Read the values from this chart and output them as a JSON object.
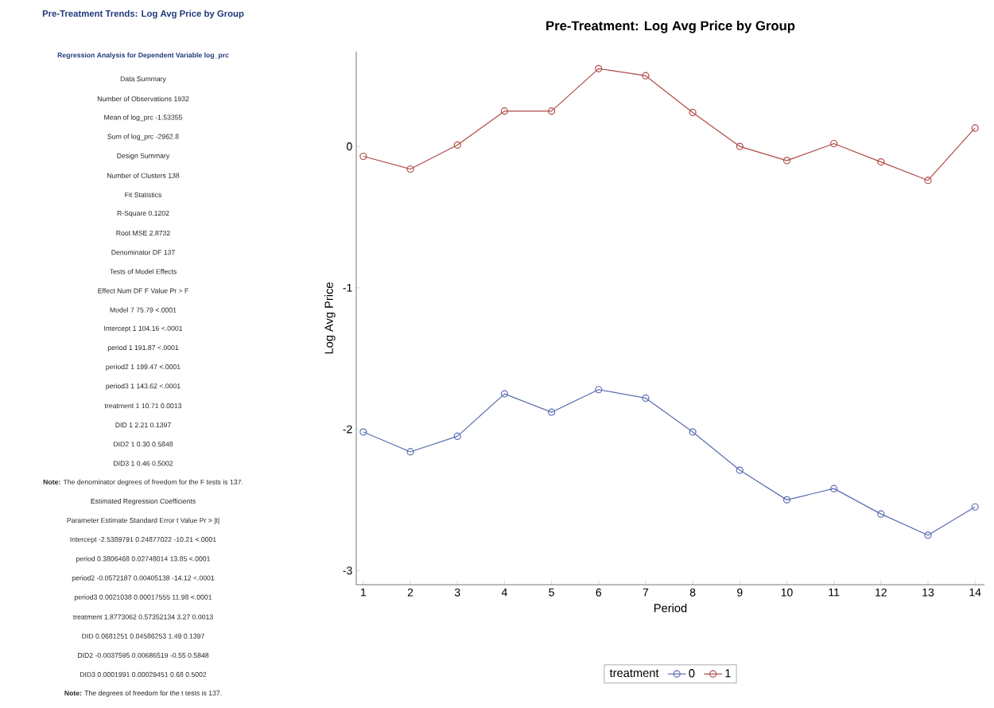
{
  "chart_data": [
    {
      "type": "other",
      "title": "Pre-Treatment Trends: Log Avg Price by Group",
      "subtitle": "Regression Analysis for Dependent Variable log_prc",
      "annotations": [
        "Data Summary",
        "Number of Observations 1932",
        "Mean of log_prc -1.53355",
        "Sum of log_prc -2962.8",
        "Design Summary",
        "Number of Clusters 138",
        "Fit Statistics",
        "R-Square 0.1202",
        "Root MSE 2.8732",
        "Denominator DF 137",
        "Tests of Model Effects",
        "Effect  Num DF  F Value  Pr > F",
        "Model 7 75.79 <.0001",
        "Intercept 1 104.16 <.0001",
        "period 1 191.87 <.0001",
        "period2 1 199.47 <.0001",
        "period3 1 143.62 <.0001",
        "treatment 1 10.71 0.0013",
        "DID 1 2.21 0.1397",
        "DID2 1 0.30 0.5848",
        "DID3 1 0.46 0.5002",
        "**Note:** The denominator degrees of freedom for the F tests is 137.",
        "Estimated Regression Coefficients",
        "Parameter  Estimate  Standard Error  t Value  Pr > |t|",
        "Intercept -2.5389791 0.24877022 -10.21 <.0001",
        "period 0.3806468 0.02748014 13.85 <.0001",
        "period2 -0.0572187 0.00405138 -14.12 <.0001",
        "period3 0.0021038 0.00017555 11.98 <.0001",
        "treatment 1.8773062 0.57352134 3.27 0.0013",
        "DID 0.0681251 0.04586253 1.49 0.1397",
        "DID2 -0.0037595 0.00686519 -0.55 0.5848",
        "DID3 0.0001991 0.00029451 0.68 0.5002",
        "**Note:** The degrees of freedom for the t tests is 137."
      ]
    },
    {
      "type": "line",
      "title": "Pre-Treatment: Log Avg Price by Group",
      "xlabel": "Period",
      "ylabel": "Log Avg Price",
      "legend_title": "treatment",
      "x": [
        1,
        2,
        3,
        4,
        5,
        6,
        7,
        8,
        9,
        10,
        11,
        12,
        13,
        14
      ],
      "series": [
        {
          "name": "0",
          "color": "#5a6cb0",
          "values": [
            -2.02,
            -2.16,
            -2.05,
            -1.75,
            -1.88,
            -1.72,
            -1.78,
            -2.02,
            -2.29,
            -2.5,
            -2.42,
            -2.6,
            -2.75,
            -2.55
          ]
        },
        {
          "name": "1",
          "color": "#b04a47",
          "values": [
            -0.07,
            -0.16,
            0.01,
            0.25,
            0.25,
            0.55,
            0.5,
            0.24,
            0.0,
            -0.1,
            0.02,
            -0.11,
            -0.24,
            0.13
          ]
        }
      ],
      "xlim": [
        0.85,
        14.2
      ],
      "ylim": [
        -3.1,
        0.67
      ],
      "xticks": [
        1,
        2,
        3,
        4,
        5,
        6,
        7,
        8,
        9,
        10,
        11,
        12,
        13,
        14
      ],
      "yticks": [
        -3,
        -2,
        -1,
        0
      ],
      "marker": "circle",
      "line_style": "solid",
      "legend": "bottom"
    }
  ]
}
